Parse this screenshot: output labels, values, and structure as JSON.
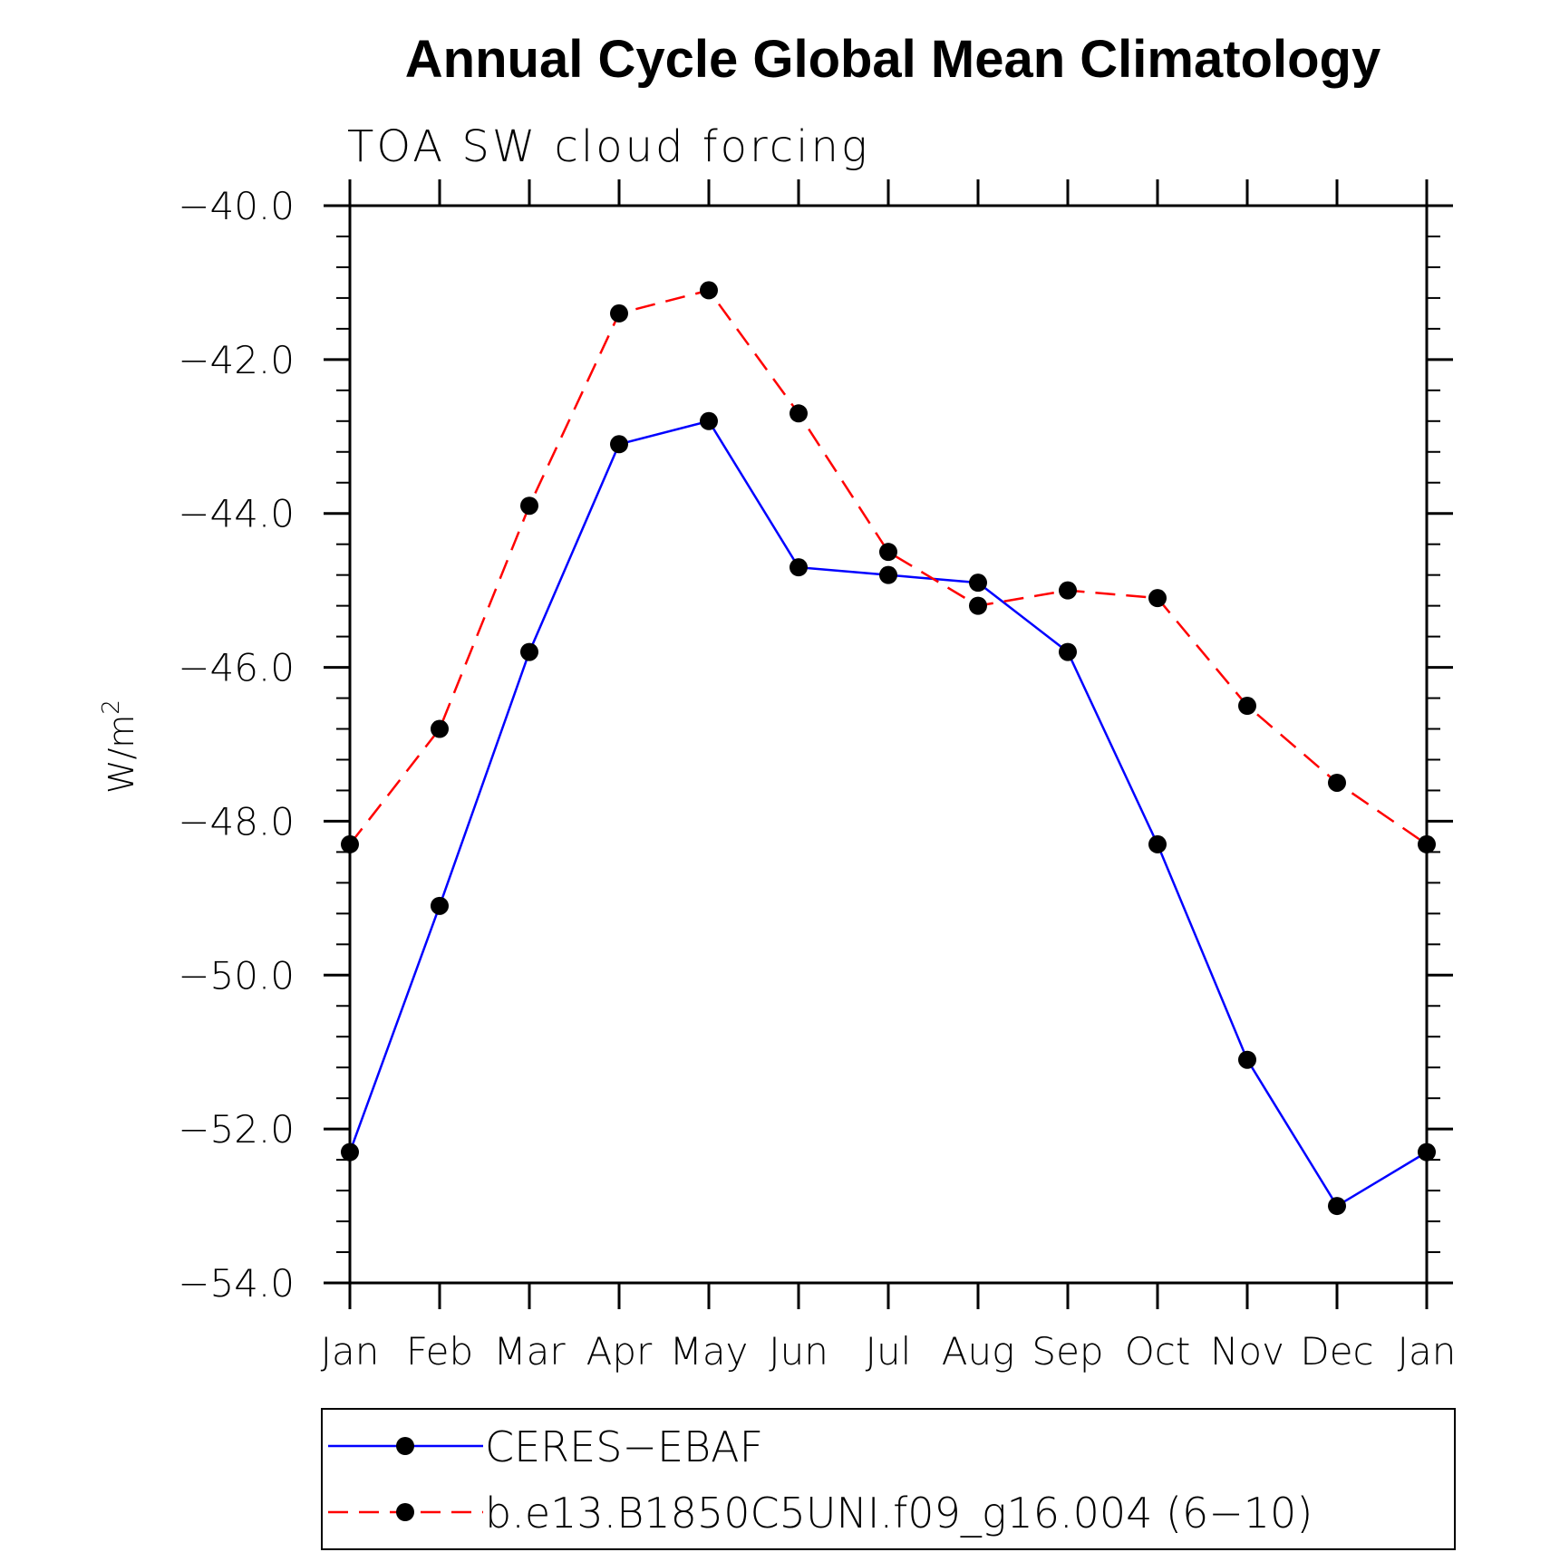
{
  "chart_data": {
    "type": "line",
    "title": "Annual Cycle Global Mean Climatology",
    "subtitle": "TOA SW cloud forcing",
    "ylabel": "W/m",
    "ylabel_superscript": "2",
    "xlabel": "",
    "categories": [
      "Jan",
      "Feb",
      "Mar",
      "Apr",
      "May",
      "Jun",
      "Jul",
      "Aug",
      "Sep",
      "Oct",
      "Nov",
      "Dec",
      "Jan"
    ],
    "ylim": [
      -54.0,
      -40.0
    ],
    "yticks": [
      -40.0,
      -42.0,
      -44.0,
      -46.0,
      -48.0,
      -50.0,
      -52.0,
      -54.0
    ],
    "ytick_labels": [
      "−40.0",
      "−42.0",
      "−44.0",
      "−46.0",
      "−48.0",
      "−50.0",
      "−52.0",
      "−54.0"
    ],
    "grid": false,
    "legend_position": "bottom",
    "series": [
      {
        "name": "CERES−EBAF",
        "color": "#0000ff",
        "dash": "solid",
        "marker": "circle",
        "values": [
          -52.3,
          -49.1,
          -45.8,
          -43.1,
          -42.8,
          -44.7,
          -44.8,
          -44.9,
          -45.8,
          -48.3,
          -51.1,
          -53.0,
          -52.3
        ]
      },
      {
        "name": "b.e13.B1850C5UNI.f09_g16.004 (6−10)",
        "color": "#ff0000",
        "dash": "dashed",
        "marker": "circle",
        "values": [
          -48.3,
          -46.8,
          -43.9,
          -41.4,
          -41.1,
          -42.7,
          -44.5,
          -45.2,
          -45.0,
          -45.1,
          -46.5,
          -47.5,
          -48.3
        ]
      }
    ]
  }
}
